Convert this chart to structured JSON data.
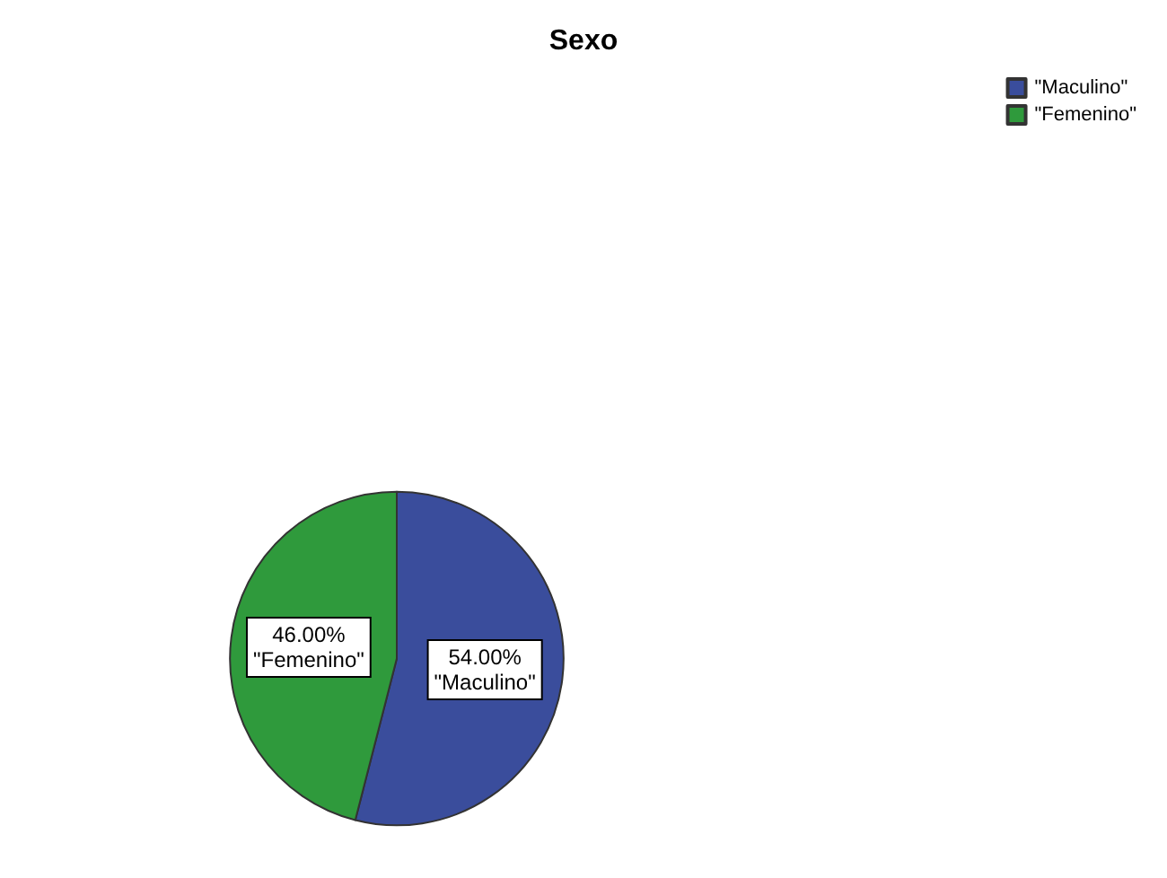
{
  "chart_data": {
    "type": "pie",
    "title": "Sexo",
    "categories": [
      "\"Maculino\"",
      "\"Femenino\""
    ],
    "values": [
      54,
      46
    ],
    "colors": [
      "#3a4d9c",
      "#2f9a3c"
    ],
    "value_labels": [
      "54.00%",
      "46.00%"
    ],
    "legend": "top right"
  }
}
